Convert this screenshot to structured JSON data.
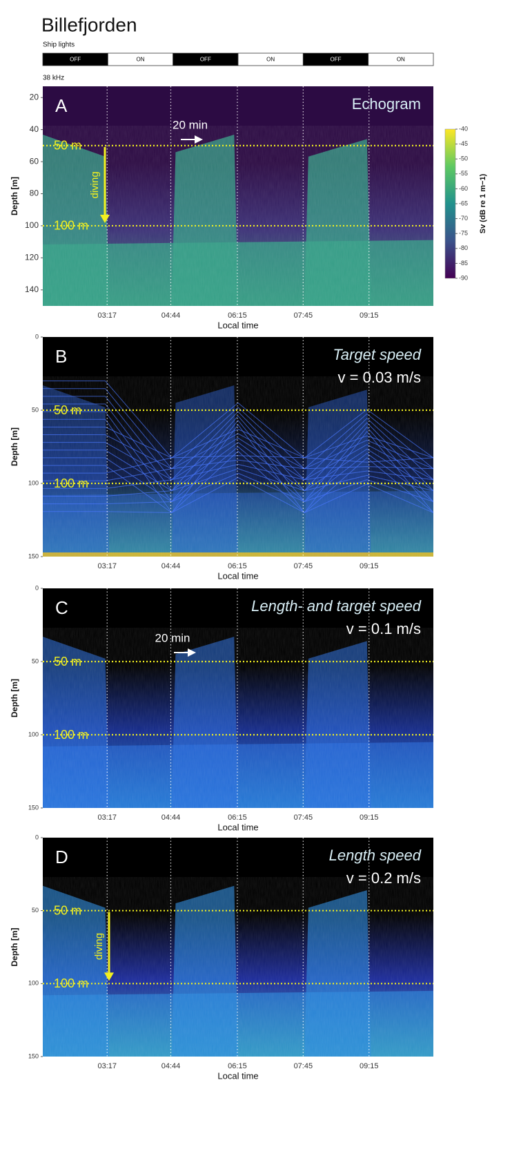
{
  "header": {
    "title": "Billefjorden",
    "ship_lights_label": "Ship lights",
    "ship_lights": [
      "OFF",
      "ON",
      "OFF",
      "ON",
      "OFF",
      "ON"
    ],
    "frequency": "38 kHz"
  },
  "chart_data": [
    {
      "type": "echogram",
      "panel": "A",
      "title": "Echogram",
      "xlabel": "Local time",
      "ylabel": "Depth [m]",
      "xlim": [
        109,
        643
      ],
      "xticks": [
        {
          "value": 197,
          "label": "03:17"
        },
        {
          "value": 284,
          "label": "04:44"
        },
        {
          "value": 375,
          "label": "06:15"
        },
        {
          "value": 465,
          "label": "07:45"
        },
        {
          "value": 555,
          "label": "09:15"
        }
      ],
      "ylim": [
        13,
        150
      ],
      "yticks": [
        20,
        40,
        60,
        80,
        100,
        120,
        140
      ],
      "hlines": [
        {
          "value": 50,
          "label": "50 m"
        },
        {
          "value": 100,
          "label": "100 m"
        }
      ],
      "annotations": [
        "20 min",
        "diving"
      ],
      "colorbar": {
        "label": "Sv (dB re 1 m−1)",
        "lim": [
          -40,
          -90
        ],
        "ticks": [
          -40,
          -45,
          -50,
          -55,
          -60,
          -65,
          -70,
          -75,
          -80,
          -85,
          -90
        ]
      }
    },
    {
      "type": "echogram",
      "panel": "B",
      "title": "Target speed",
      "subtitle": "v = 0.03 m/s",
      "xlabel": "Local time",
      "ylabel": "Depth [m]",
      "xlim": [
        109,
        643
      ],
      "xticks": [
        {
          "value": 197,
          "label": "03:17"
        },
        {
          "value": 284,
          "label": "04:44"
        },
        {
          "value": 375,
          "label": "06:15"
        },
        {
          "value": 465,
          "label": "07:45"
        },
        {
          "value": 555,
          "label": "09:15"
        }
      ],
      "ylim": [
        0,
        150
      ],
      "yticks": [
        0,
        50,
        100,
        150
      ],
      "hlines": [
        {
          "value": 50,
          "label": "50 m"
        },
        {
          "value": 100,
          "label": "100 m"
        }
      ]
    },
    {
      "type": "echogram",
      "panel": "C",
      "title": "Length- and target speed",
      "subtitle": "v = 0.1 m/s",
      "xlabel": "Local time",
      "ylabel": "Depth [m]",
      "xlim": [
        109,
        643
      ],
      "xticks": [
        {
          "value": 197,
          "label": "03:17"
        },
        {
          "value": 284,
          "label": "04:44"
        },
        {
          "value": 375,
          "label": "06:15"
        },
        {
          "value": 465,
          "label": "07:45"
        },
        {
          "value": 555,
          "label": "09:15"
        }
      ],
      "ylim": [
        0,
        150
      ],
      "yticks": [
        0,
        50,
        100,
        150
      ],
      "hlines": [
        {
          "value": 50,
          "label": "50 m"
        },
        {
          "value": 100,
          "label": "100 m"
        }
      ],
      "annotations": [
        "20 min"
      ]
    },
    {
      "type": "echogram",
      "panel": "D",
      "title": "Length speed",
      "subtitle": "v = 0.2 m/s",
      "xlabel": "Local time",
      "ylabel": "Depth [m]",
      "xlim": [
        109,
        643
      ],
      "xticks": [
        {
          "value": 197,
          "label": "03:17"
        },
        {
          "value": 284,
          "label": "04:44"
        },
        {
          "value": 375,
          "label": "06:15"
        },
        {
          "value": 465,
          "label": "07:45"
        },
        {
          "value": 555,
          "label": "09:15"
        }
      ],
      "ylim": [
        0,
        150
      ],
      "yticks": [
        0,
        50,
        100,
        150
      ],
      "hlines": [
        {
          "value": 50,
          "label": "50 m"
        },
        {
          "value": 100,
          "label": "100 m"
        }
      ],
      "annotations": [
        "diving"
      ]
    }
  ]
}
